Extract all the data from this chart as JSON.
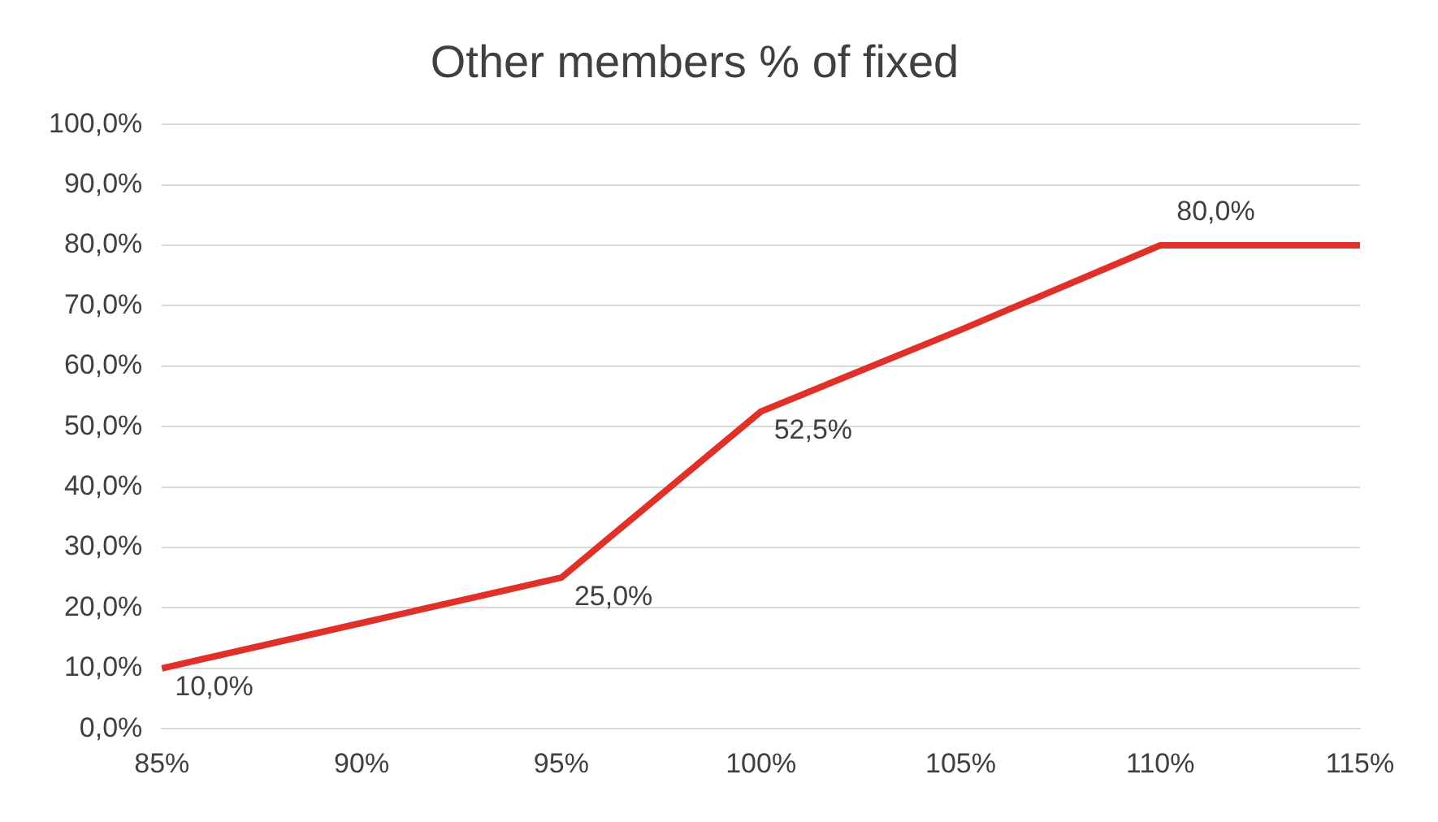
{
  "chart_data": {
    "type": "line",
    "title": "Other members % of fixed",
    "categories": [
      "85%",
      "90%",
      "95%",
      "100%",
      "105%",
      "110%",
      "115%"
    ],
    "series": [
      {
        "color": "#e0302a",
        "values": [
          10,
          17.5,
          25,
          52.5,
          66,
          80,
          80
        ],
        "value_labels": [
          "10,0%",
          null,
          "25,0%",
          "52,5%",
          null,
          "80,0%",
          null
        ]
      }
    ],
    "ylim": [
      0,
      100
    ],
    "yticks": [
      {
        "value": 0,
        "label": "0,0%"
      },
      {
        "value": 10,
        "label": "10,0%"
      },
      {
        "value": 20,
        "label": "20,0%"
      },
      {
        "value": 30,
        "label": "30,0%"
      },
      {
        "value": 40,
        "label": "40,0%"
      },
      {
        "value": 50,
        "label": "50,0%"
      },
      {
        "value": 60,
        "label": "60,0%"
      },
      {
        "value": 70,
        "label": "70,0%"
      },
      {
        "value": 80,
        "label": "80,0%"
      },
      {
        "value": 90,
        "label": "90,0%"
      },
      {
        "value": 100,
        "label": "100,0%"
      }
    ],
    "grid": "y",
    "marker": "none",
    "line_style": "solid",
    "legend": false
  }
}
